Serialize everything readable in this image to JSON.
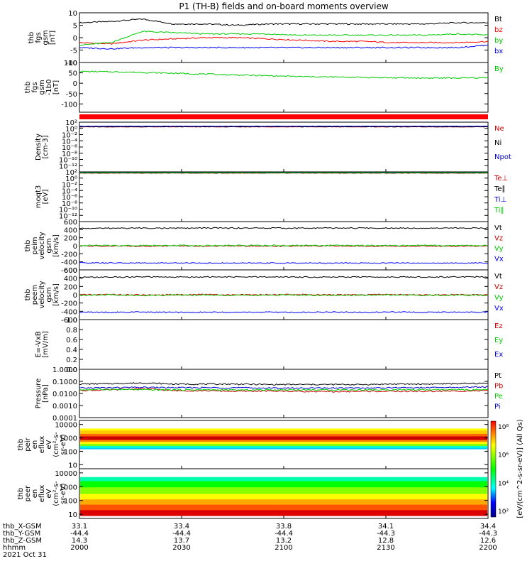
{
  "title": "P1 (TH-B) fields and on-board moments overview",
  "date_label": "2021 Oct 31",
  "spectrogram_units": "[eV/(cm^2-s-sr-eV)] (All Qs)",
  "spectrogram_colorbar_ticks": [
    "10⁸",
    "10⁶",
    "10⁴",
    "10²"
  ],
  "ephemeris": {
    "row_labels": [
      "thb_X-GSM",
      "thb_Y-GSM",
      "thb_Z-GSM",
      "hhmm"
    ],
    "columns": [
      {
        "x": "33.1",
        "y": "-44.4",
        "z": "14.3",
        "t": "2000"
      },
      {
        "x": "33.4",
        "y": "-44.4",
        "z": "13.7",
        "t": "2030"
      },
      {
        "x": "33.8",
        "y": "-44.4",
        "z": "13.2",
        "t": "2100"
      },
      {
        "x": "34.1",
        "y": "-44.3",
        "z": "12.8",
        "t": "2130"
      },
      {
        "x": "34.4",
        "y": "-44.3",
        "z": "12.6",
        "t": "2200"
      }
    ]
  },
  "chart_data": [
    {
      "type": "line",
      "ylabel": [
        "thb",
        "fgs",
        "gsm",
        "[nT]"
      ],
      "ylim": [
        -10,
        10
      ],
      "yticks": [
        "10",
        "5",
        "0",
        "-5",
        "-10"
      ],
      "series": [
        {
          "name": "Bt",
          "color": "#000000",
          "values": [
            6,
            6.5,
            7.5,
            5.5,
            5.5,
            5,
            5.5,
            5.5,
            5.5,
            5.5,
            5.5,
            5.5,
            6,
            6
          ]
        },
        {
          "name": "bz",
          "color": "#ff0000",
          "values": [
            -2,
            -2.5,
            -1,
            -0.5,
            0,
            0,
            -0.5,
            -1,
            -1.5,
            -1.5,
            -2,
            -2,
            -2,
            -1.5
          ]
        },
        {
          "name": "by",
          "color": "#00cc00",
          "values": [
            -3,
            -2,
            2.5,
            2,
            1.5,
            1.5,
            1.5,
            1,
            1,
            1,
            1,
            1,
            1.5,
            1
          ]
        },
        {
          "name": "bx",
          "color": "#0000ff",
          "values": [
            -4,
            -4.5,
            -4,
            -4,
            -4,
            -4,
            -4,
            -4,
            -4,
            -4,
            -4,
            -4,
            -4,
            -3
          ]
        }
      ]
    },
    {
      "type": "line",
      "ylabel": [
        "thb",
        "fgs",
        "gsm",
        "-1b0",
        "[nT]"
      ],
      "ylim": [
        -140,
        100
      ],
      "yticks": [
        "100",
        "50",
        "0",
        "-50",
        "-100"
      ],
      "series": [
        {
          "name": "By",
          "color": "#00cc00",
          "values": [
            57,
            55,
            52,
            48,
            44,
            40,
            36,
            32,
            30,
            28,
            26,
            25,
            25,
            26
          ]
        }
      ]
    },
    {
      "type": "line",
      "ylabel": [
        "Density",
        "[cm-3]"
      ],
      "yscale": "log",
      "ylim": [
        1e-14,
        100
      ],
      "yticks": [
        "10²",
        "10⁰",
        "10⁻²",
        "10⁻⁴",
        "10⁻⁶",
        "10⁻⁸",
        "10⁻¹⁰",
        "10⁻¹²"
      ],
      "series": [
        {
          "name": "Ne",
          "color": "#cc0000",
          "values": [
            3,
            3,
            3,
            3,
            3,
            3,
            3,
            3,
            3,
            3,
            3,
            3,
            3,
            3
          ]
        },
        {
          "name": "Ni",
          "color": "#000000",
          "values": [
            3.3,
            3.3,
            3.3,
            3.3,
            3.3,
            3.3,
            3.3,
            3.3,
            3.3,
            3.3,
            3.3,
            3.3,
            3.3,
            3.3
          ]
        },
        {
          "name": "Npot",
          "color": "#0000cc",
          "values": [
            5,
            5,
            5,
            5,
            5,
            5,
            5,
            5,
            5,
            5,
            5,
            5,
            5,
            5
          ]
        }
      ]
    },
    {
      "type": "line",
      "ylabel": [
        "moqt3",
        "[eV]"
      ],
      "yscale": "log",
      "ylim": [
        1e-14,
        100
      ],
      "yticks": [
        "10²",
        "10⁰",
        "10⁻²",
        "10⁻⁴",
        "10⁻⁶",
        "10⁻⁸",
        "10⁻¹⁰",
        "10⁻¹²"
      ],
      "series": [
        {
          "name": "Te⊥",
          "color": "#cc0000",
          "values": [
            40,
            40,
            40,
            40,
            40,
            40,
            40,
            40,
            40,
            40,
            40,
            40,
            40,
            40
          ]
        },
        {
          "name": "Te∥",
          "color": "#000000",
          "values": [
            45,
            45,
            45,
            45,
            45,
            45,
            45,
            45,
            45,
            45,
            45,
            45,
            45,
            45
          ]
        },
        {
          "name": "Ti⊥",
          "color": "#0000cc",
          "values": [
            60,
            60,
            60,
            60,
            60,
            60,
            60,
            60,
            60,
            60,
            60,
            60,
            60,
            60
          ]
        },
        {
          "name": "Ti∥",
          "color": "#00cc00",
          "values": [
            55,
            55,
            55,
            55,
            55,
            55,
            55,
            55,
            55,
            55,
            55,
            55,
            55,
            55
          ]
        }
      ]
    },
    {
      "type": "line",
      "ylabel": [
        "thb",
        "peim",
        "velocity",
        "gsm",
        "[km/s]"
      ],
      "ylim": [
        -600,
        600
      ],
      "yticks": [
        "600",
        "400",
        "200",
        "0",
        "-200",
        "-400",
        "-600"
      ],
      "series": [
        {
          "name": "Vt",
          "color": "#000000",
          "values": [
            430,
            435,
            440,
            435,
            440,
            440,
            438,
            436,
            440,
            438,
            440,
            440,
            440,
            440
          ]
        },
        {
          "name": "Vz",
          "color": "#cc0000",
          "values": [
            -10,
            -5,
            -10,
            -5,
            -10,
            -5,
            -10,
            -10,
            -5,
            -10,
            -10,
            -5,
            -10,
            -10
          ]
        },
        {
          "name": "Vy",
          "color": "#00cc00",
          "values": [
            10,
            5,
            5,
            10,
            5,
            10,
            5,
            5,
            10,
            5,
            5,
            10,
            5,
            5
          ]
        },
        {
          "name": "Vx",
          "color": "#0000ff",
          "values": [
            -425,
            -430,
            -430,
            -428,
            -430,
            -432,
            -430,
            -430,
            -432,
            -430,
            -430,
            -432,
            -430,
            -430
          ]
        }
      ]
    },
    {
      "type": "line",
      "ylabel": [
        "thb",
        "peem",
        "velocity",
        "gsm",
        "[km/s]"
      ],
      "ylim": [
        -600,
        600
      ],
      "yticks": [
        "600",
        "400",
        "200",
        "0",
        "-200",
        "-400",
        "-600"
      ],
      "series": [
        {
          "name": "Vt",
          "color": "#000000",
          "values": [
            420,
            425,
            430,
            425,
            430,
            428,
            430,
            425,
            430,
            428,
            430,
            425,
            430,
            430
          ]
        },
        {
          "name": "Vz",
          "color": "#cc0000",
          "values": [
            0,
            5,
            -5,
            0,
            5,
            -5,
            0,
            5,
            -5,
            0,
            5,
            -5,
            0,
            0
          ]
        },
        {
          "name": "Vy",
          "color": "#00cc00",
          "values": [
            -10,
            -5,
            -15,
            -10,
            -5,
            -15,
            -10,
            -5,
            -15,
            -10,
            -5,
            -15,
            -10,
            -10
          ]
        },
        {
          "name": "Vx",
          "color": "#0000ff",
          "values": [
            -420,
            -425,
            -420,
            -425,
            -420,
            -425,
            -420,
            -425,
            -420,
            -425,
            -420,
            -425,
            -420,
            -420
          ]
        }
      ]
    },
    {
      "type": "line",
      "ylabel": [
        "E=-VxB",
        "[mV/m]"
      ],
      "ylim": [
        0,
        1
      ],
      "yticks": [
        "1.0",
        "0.8",
        "0.6",
        "0.4",
        "0.2",
        "0.0"
      ],
      "series": [
        {
          "name": "Ez",
          "color": "#cc0000",
          "values": []
        },
        {
          "name": "Ey",
          "color": "#00cc00",
          "values": []
        },
        {
          "name": "Ex",
          "color": "#0000cc",
          "values": []
        }
      ]
    },
    {
      "type": "line",
      "ylabel": [
        "Pressure",
        "[nPa]"
      ],
      "yscale": "log",
      "ylim": [
        0.0001,
        1
      ],
      "yticks": [
        "1.0000",
        "0.1000",
        "0.0100",
        "0.0010",
        "0.0001"
      ],
      "series": [
        {
          "name": "Pt",
          "color": "#000000",
          "values": [
            0.06,
            0.065,
            0.075,
            0.06,
            0.06,
            0.06,
            0.055,
            0.055,
            0.055,
            0.055,
            0.06,
            0.06,
            0.065,
            0.07
          ]
        },
        {
          "name": "Pb",
          "color": "#cc0000",
          "values": [
            0.018,
            0.02,
            0.025,
            0.017,
            0.017,
            0.015,
            0.016,
            0.015,
            0.014,
            0.015,
            0.015,
            0.015,
            0.016,
            0.017
          ]
        },
        {
          "name": "Pe",
          "color": "#00cc00",
          "values": [
            0.02,
            0.022,
            0.02,
            0.02,
            0.02,
            0.019,
            0.02,
            0.02,
            0.02,
            0.02,
            0.02,
            0.02,
            0.02,
            0.02
          ]
        },
        {
          "name": "Pi",
          "color": "#0000cc",
          "values": [
            0.028,
            0.03,
            0.032,
            0.03,
            0.03,
            0.03,
            0.028,
            0.028,
            0.028,
            0.028,
            0.03,
            0.03,
            0.032,
            0.035
          ]
        }
      ]
    },
    {
      "type": "heatmap",
      "ylabel": [
        "thb",
        "peir",
        "en",
        "eflux",
        "eV",
        "(cm²-s-",
        "sr-eV)"
      ],
      "yscale": "log",
      "ylim": [
        5,
        20000
      ],
      "yticks": [
        "10000",
        "1000",
        "100",
        "10"
      ],
      "energy_bands": [
        {
          "from": 5000,
          "to": 3500,
          "color": "#ffff00"
        },
        {
          "from": 3500,
          "to": 2000,
          "color": "#ffcc00"
        },
        {
          "from": 2000,
          "to": 1300,
          "color": "#ff6600"
        },
        {
          "from": 1300,
          "to": 700,
          "color": "#cc0000"
        },
        {
          "from": 700,
          "to": 500,
          "color": "#ff8800"
        },
        {
          "from": 500,
          "to": 350,
          "color": "#ffff00"
        },
        {
          "from": 350,
          "to": 250,
          "color": "#88ff00"
        },
        {
          "from": 250,
          "to": 180,
          "color": "#00ffcc"
        },
        {
          "from": 180,
          "to": 150,
          "color": "#00ccff"
        }
      ]
    },
    {
      "type": "heatmap",
      "ylabel": [
        "thb",
        "peer",
        "en",
        "eflux",
        "eV",
        "(cm²-s-",
        "sr-eV)"
      ],
      "yscale": "log",
      "ylim": [
        5,
        20000
      ],
      "yticks": [
        "10000",
        "1000",
        "100",
        "10"
      ],
      "energy_bands": [
        {
          "from": 5000,
          "to": 2500,
          "color": "#00ffaa"
        },
        {
          "from": 2500,
          "to": 900,
          "color": "#00ff00"
        },
        {
          "from": 900,
          "to": 300,
          "color": "#88ff00"
        },
        {
          "from": 300,
          "to": 120,
          "color": "#ffff00"
        },
        {
          "from": 120,
          "to": 50,
          "color": "#ffaa00"
        },
        {
          "from": 50,
          "to": 20,
          "color": "#ff5500"
        },
        {
          "from": 20,
          "to": 8,
          "color": "#dd0000"
        }
      ]
    }
  ]
}
